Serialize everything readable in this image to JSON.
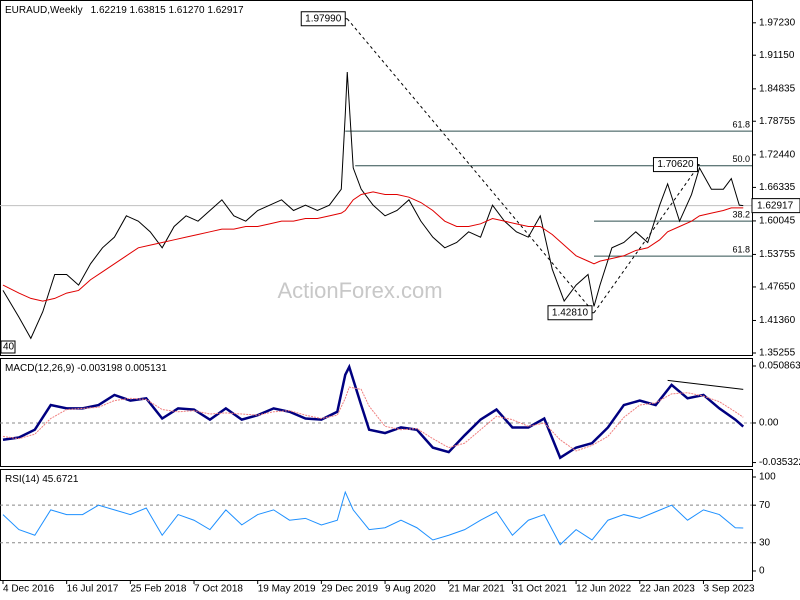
{
  "chart_data": [
    {
      "type": "line",
      "title": "EURAUD,Weekly",
      "subtitle": "1.62219 1.63815 1.61270 1.62917",
      "xlim": [
        -1.5,
        376.4
      ],
      "ylim": [
        1.3488,
        2.0151
      ],
      "yticks": [
        {
          "value": 1.9723,
          "label": "1.97230"
        },
        {
          "value": 1.9115,
          "label": "1.91150"
        },
        1.84835,
        1.78755,
        {
          "value": 1.7244,
          "label": "1.72440"
        },
        1.66335,
        1.60045,
        1.53755,
        {
          "value": 1.4765,
          "label": "1.47650"
        },
        {
          "value": 1.4136,
          "label": "1.41360"
        },
        1.35255
      ],
      "x": [
        0,
        8,
        14,
        20,
        26,
        32,
        38,
        44,
        50,
        56,
        62,
        68,
        74,
        80,
        86,
        92,
        98,
        104,
        110,
        116,
        122,
        128,
        134,
        140,
        146,
        152,
        158,
        164,
        170,
        172,
        173,
        176,
        180,
        186,
        192,
        198,
        204,
        210,
        216,
        222,
        228,
        234,
        240,
        246,
        252,
        258,
        264,
        270,
        276,
        282,
        288,
        294,
        297,
        300,
        306,
        312,
        318,
        324,
        330,
        334,
        340,
        346,
        350,
        356,
        362,
        366,
        370,
        372
      ],
      "series": [
        {
          "color": "#000000",
          "values": [
            1.47,
            1.42,
            1.38,
            1.43,
            1.5,
            1.5,
            1.48,
            1.52,
            1.55,
            1.57,
            1.61,
            1.6,
            1.58,
            1.55,
            1.59,
            1.61,
            1.6,
            1.62,
            1.64,
            1.61,
            1.6,
            1.62,
            1.63,
            1.64,
            1.62,
            1.63,
            1.62,
            1.63,
            1.66,
            1.8,
            1.88,
            1.7,
            1.66,
            1.63,
            1.61,
            1.62,
            1.64,
            1.6,
            1.57,
            1.55,
            1.56,
            1.58,
            1.57,
            1.63,
            1.6,
            1.58,
            1.57,
            1.61,
            1.51,
            1.45,
            1.48,
            1.5,
            1.44,
            1.48,
            1.55,
            1.56,
            1.58,
            1.56,
            1.63,
            1.67,
            1.6,
            1.65,
            1.7,
            1.66,
            1.66,
            1.68,
            1.63,
            1.62917
          ]
        },
        {
          "color": "#e00000",
          "values": [
            1.48,
            1.465,
            1.455,
            1.45,
            1.455,
            1.465,
            1.47,
            1.49,
            1.505,
            1.52,
            1.535,
            1.55,
            1.555,
            1.56,
            1.565,
            1.57,
            1.575,
            1.58,
            1.585,
            1.585,
            1.59,
            1.59,
            1.595,
            1.6,
            1.6,
            1.605,
            1.605,
            1.61,
            1.615,
            1.62,
            1.625,
            1.64,
            1.65,
            1.655,
            1.65,
            1.65,
            1.645,
            1.635,
            1.62,
            1.6,
            1.59,
            1.59,
            1.595,
            1.605,
            1.6,
            1.595,
            1.59,
            1.59,
            1.575,
            1.555,
            1.535,
            1.525,
            1.52,
            1.525,
            1.53,
            1.535,
            1.545,
            1.55,
            1.565,
            1.58,
            1.59,
            1.6,
            1.61,
            1.615,
            1.62,
            1.625,
            1.625,
            1.625
          ]
        }
      ],
      "last": {
        "value": 1.62917,
        "label": "1.62917"
      },
      "levels": [
        {
          "label": "61.8",
          "value": 1.7691,
          "from": 172
        },
        {
          "label": "50.0",
          "value": 1.704,
          "from": 177
        },
        {
          "label": "38.2",
          "value": 1.6,
          "from": 297
        },
        {
          "label": "61.8",
          "value": 1.5343,
          "from": 297
        }
      ],
      "points": [
        {
          "label": "1.97990",
          "value": 1.9799,
          "x": 173
        },
        {
          "label": "1.42810",
          "value": 1.4281,
          "x": 297
        },
        {
          "label": "1.70620",
          "value": 1.7062,
          "x": 350
        }
      ],
      "corner_label": "40"
    },
    {
      "type": "line",
      "title": "MACD(12,26,9) -0.003198 0.005131",
      "xlim": [
        -1.5,
        376.4
      ],
      "ylim": [
        -0.0384,
        0.058
      ],
      "grid": true,
      "yticks": [
        0.050863,
        {
          "value": 0,
          "label": "0.00"
        },
        -0.035322
      ],
      "x": [
        0,
        8,
        16,
        24,
        32,
        40,
        48,
        56,
        64,
        72,
        80,
        88,
        96,
        104,
        112,
        120,
        128,
        136,
        144,
        152,
        160,
        168,
        172,
        174,
        180,
        184,
        192,
        200,
        208,
        216,
        224,
        232,
        240,
        248,
        256,
        264,
        272,
        280,
        288,
        296,
        304,
        312,
        320,
        328,
        336,
        344,
        352,
        360,
        368,
        372
      ],
      "series": [
        {
          "color": "#000080",
          "values": [
            -0.015,
            -0.013,
            -0.006,
            0.016,
            0.013,
            0.013,
            0.016,
            0.025,
            0.02,
            0.022,
            0.004,
            0.013,
            0.012,
            0.003,
            0.013,
            0.003,
            0.007,
            0.013,
            0.01,
            0.004,
            0.003,
            0.01,
            0.043,
            0.05,
            0.016,
            -0.006,
            -0.009,
            -0.004,
            -0.006,
            -0.022,
            -0.026,
            -0.011,
            0.003,
            0.012,
            -0.004,
            -0.004,
            0.004,
            -0.031,
            -0.022,
            -0.018,
            -0.004,
            0.016,
            0.02,
            0.016,
            0.034,
            0.022,
            0.025,
            0.013,
            0.003,
            -0.003198
          ]
        },
        {
          "color": "#f08080",
          "values": [
            -0.012,
            -0.014,
            -0.01,
            0.004,
            0.012,
            0.013,
            0.014,
            0.02,
            0.022,
            0.021,
            0.012,
            0.01,
            0.011,
            0.008,
            0.009,
            0.008,
            0.007,
            0.01,
            0.011,
            0.007,
            0.004,
            0.007,
            0.022,
            0.032,
            0.03,
            0.015,
            -0.003,
            -0.006,
            -0.005,
            -0.014,
            -0.022,
            -0.018,
            -0.006,
            0.006,
            0.003,
            -0.003,
            0.0,
            -0.015,
            -0.025,
            -0.02,
            -0.012,
            0.005,
            0.016,
            0.018,
            0.026,
            0.027,
            0.024,
            0.019,
            0.01,
            0.005131
          ]
        }
      ],
      "trendline": {
        "x": [
          334,
          372
        ],
        "values": [
          0.038,
          0.03
        ]
      }
    },
    {
      "type": "line",
      "title": "RSI(14) 45.6721",
      "xlim": [
        -1.5,
        376.4
      ],
      "ylim": [
        -9.6,
        108.5
      ],
      "grid": true,
      "yticks": [
        100,
        70,
        30,
        0
      ],
      "xticks": [
        {
          "value": 0,
          "label": "4 Dec 2016"
        },
        {
          "value": 32,
          "label": "16 Jul 2017"
        },
        {
          "value": 64,
          "label": "25 Feb 2018"
        },
        {
          "value": 96,
          "label": "7 Oct 2018"
        },
        {
          "value": 128,
          "label": "19 May 2019"
        },
        {
          "value": 160,
          "label": "29 Dec 2019"
        },
        {
          "value": 192,
          "label": "9 Aug 2020"
        },
        {
          "value": 224,
          "label": "21 Mar 2021"
        },
        {
          "value": 256,
          "label": "31 Oct 2021"
        },
        {
          "value": 288,
          "label": "12 Jun 2022"
        },
        {
          "value": 320,
          "label": "22 Jan 2023"
        },
        {
          "value": 352,
          "label": "3 Sep 2023"
        }
      ],
      "x": [
        0,
        8,
        16,
        24,
        32,
        40,
        48,
        56,
        64,
        72,
        80,
        88,
        96,
        104,
        112,
        120,
        128,
        136,
        144,
        152,
        160,
        168,
        172,
        176,
        184,
        192,
        200,
        208,
        216,
        224,
        232,
        240,
        248,
        256,
        264,
        272,
        280,
        288,
        296,
        304,
        312,
        320,
        328,
        336,
        344,
        352,
        360,
        368,
        372
      ],
      "series": [
        {
          "color": "#1e90ff",
          "values": [
            60,
            44,
            38,
            65,
            60,
            60,
            70,
            65,
            60,
            67,
            38,
            60,
            54,
            44,
            65,
            49,
            60,
            65,
            54,
            56,
            49,
            54,
            84,
            65,
            44,
            46,
            54,
            46,
            33,
            38,
            44,
            54,
            63,
            38,
            54,
            60,
            28,
            44,
            33,
            54,
            60,
            56,
            63,
            70,
            54,
            65,
            60,
            46,
            45.6721
          ]
        }
      ]
    }
  ],
  "watermark": "ActionForex.com"
}
